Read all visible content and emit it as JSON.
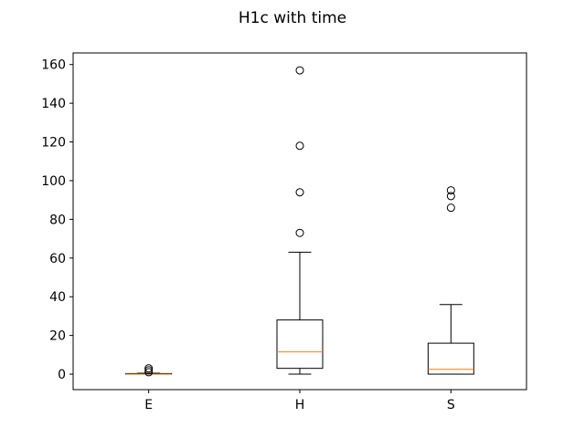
{
  "chart_data": {
    "type": "box",
    "title": "H1c with time",
    "xlabel": "",
    "ylabel": "",
    "ylim": [
      -8,
      166
    ],
    "yticks": [
      0,
      20,
      40,
      60,
      80,
      100,
      120,
      140,
      160
    ],
    "categories": [
      "E",
      "H",
      "S"
    ],
    "boxes": [
      {
        "category": "E",
        "whisker_low": 0,
        "q1": 0,
        "median": 0,
        "q3": 0.3,
        "whisker_high": 0.5,
        "outliers": [
          1,
          2,
          3
        ]
      },
      {
        "category": "H",
        "whisker_low": 0,
        "q1": 3,
        "median": 11.5,
        "q3": 28,
        "whisker_high": 63,
        "outliers": [
          73,
          94,
          118,
          157
        ]
      },
      {
        "category": "S",
        "whisker_low": 0,
        "q1": 0,
        "median": 2.5,
        "q3": 16,
        "whisker_high": 36,
        "outliers": [
          86,
          92,
          95
        ]
      }
    ],
    "colors": {
      "box": "#000000",
      "median": "#ff7f0e",
      "flier": "#000000"
    },
    "grid": false,
    "legend": "none"
  }
}
